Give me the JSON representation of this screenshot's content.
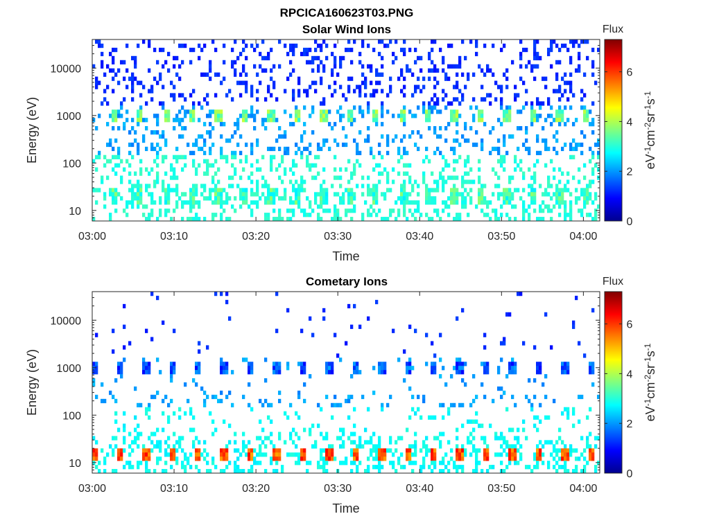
{
  "figure_title": "RPCICA160623T03.PNG",
  "chart_data": [
    {
      "type": "heatmap",
      "id": "solar",
      "title": "Solar Wind Ions",
      "xlabel": "Time",
      "ylabel": "Energy (eV)",
      "x_ticks": [
        "03:00",
        "03:10",
        "03:20",
        "03:30",
        "03:40",
        "03:50",
        "04:00"
      ],
      "x_range": [
        "03:00",
        "04:02"
      ],
      "y_scale": "log",
      "y_ticks": [
        10,
        100,
        1000,
        10000
      ],
      "y_tick_labels": [
        "10",
        "100",
        "1000",
        "10000"
      ],
      "y_range": [
        6,
        40000
      ],
      "colorbar": {
        "title": "Flux",
        "label": "eV-1cm-2sr-1s-1",
        "ticks": [
          "0",
          "2",
          "4",
          "6"
        ],
        "range": [
          0,
          7.3
        ],
        "colormap": "jet"
      },
      "pattern": {
        "scan_period_min": 3.2,
        "first_scan_min": 2.5,
        "bands": [
          {
            "energy_eV": 1000,
            "log_flux": 3.6
          },
          {
            "energy_eV": 20,
            "log_flux": 3.2
          }
        ],
        "background_log_flux": [
          1.0,
          2.8
        ]
      }
    },
    {
      "type": "heatmap",
      "id": "cometary",
      "title": "Cometary Ions",
      "xlabel": "Time",
      "ylabel": "Energy (eV)",
      "x_ticks": [
        "03:00",
        "03:10",
        "03:20",
        "03:30",
        "03:40",
        "03:50",
        "04:00"
      ],
      "x_range": [
        "03:00",
        "04:02"
      ],
      "y_scale": "log",
      "y_ticks": [
        10,
        100,
        1000,
        10000
      ],
      "y_tick_labels": [
        "10",
        "100",
        "1000",
        "10000"
      ],
      "y_range": [
        6,
        40000
      ],
      "colorbar": {
        "title": "Flux",
        "label": "eV-1cm-2sr-1s-1",
        "ticks": [
          "0",
          "2",
          "4",
          "6"
        ],
        "range": [
          0,
          7.3
        ],
        "colormap": "jet"
      },
      "pattern": {
        "scan_period_min": 3.2,
        "first_scan_min": 0.0,
        "bands": [
          {
            "energy_eV": 1000,
            "log_flux": 1.5
          },
          {
            "energy_eV": 15,
            "log_flux": 5.8
          }
        ],
        "background_log_flux": [
          1.0,
          2.6
        ]
      }
    }
  ]
}
